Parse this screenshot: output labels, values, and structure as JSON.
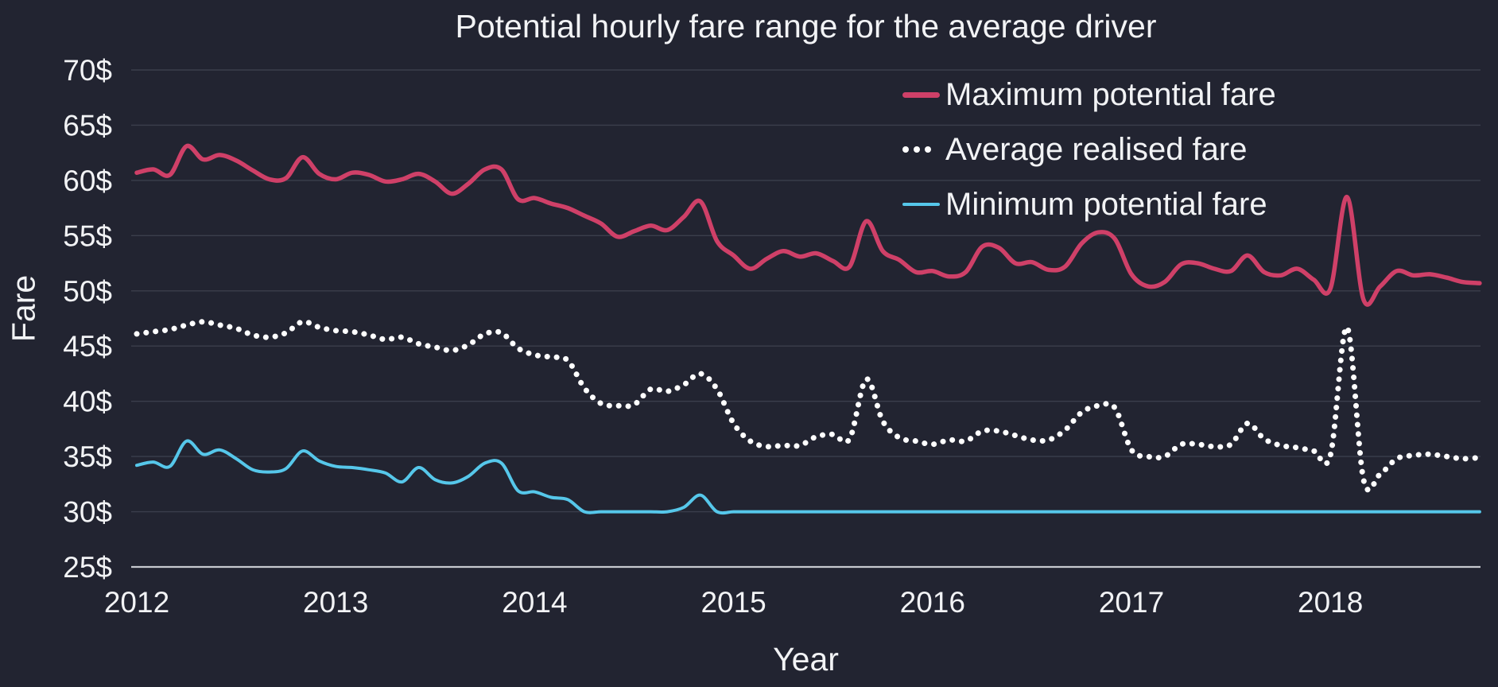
{
  "title": "Potential hourly fare range for the average driver",
  "x_axis": {
    "label": "Year",
    "tick_labels": [
      "2012",
      "2013",
      "2014",
      "2015",
      "2016",
      "2017",
      "2018"
    ]
  },
  "y_axis": {
    "label": "Fare",
    "tick_labels": [
      "70$",
      "65$",
      "60$",
      "55$",
      "50$",
      "45$",
      "40$",
      "35$",
      "30$",
      "25$"
    ],
    "tick_values": [
      70,
      65,
      60,
      55,
      50,
      45,
      40,
      35,
      30,
      25
    ]
  },
  "legend": {
    "items": [
      {
        "label": "Maximum potential fare",
        "style": "solid",
        "color": "#cf4068"
      },
      {
        "label": "Average realised fare",
        "style": "dotted",
        "color": "#ffffff"
      },
      {
        "label": "Minimum potential fare",
        "style": "solid",
        "color": "#56c7ea"
      }
    ]
  },
  "colors": {
    "background": "#222431",
    "grid": "#3b3e4c",
    "axis_line": "#c7c9cf",
    "text": "#f2f3f5",
    "maximum": "#cf4068",
    "average": "#ffffff",
    "minimum": "#56c7ea"
  },
  "chart_data": {
    "type": "line",
    "title": "Potential hourly fare range for the average driver",
    "xlabel": "Year",
    "ylabel": "Fare",
    "ylim": [
      25,
      70
    ],
    "grid": "horizontal",
    "legend_position": "upper-right-inside",
    "x_frequency": "monthly",
    "x": [
      "2012-01",
      "2012-02",
      "2012-03",
      "2012-04",
      "2012-05",
      "2012-06",
      "2012-07",
      "2012-08",
      "2012-09",
      "2012-10",
      "2012-11",
      "2012-12",
      "2013-01",
      "2013-02",
      "2013-03",
      "2013-04",
      "2013-05",
      "2013-06",
      "2013-07",
      "2013-08",
      "2013-09",
      "2013-10",
      "2013-11",
      "2013-12",
      "2014-01",
      "2014-02",
      "2014-03",
      "2014-04",
      "2014-05",
      "2014-06",
      "2014-07",
      "2014-08",
      "2014-09",
      "2014-10",
      "2014-11",
      "2014-12",
      "2015-01",
      "2015-02",
      "2015-03",
      "2015-04",
      "2015-05",
      "2015-06",
      "2015-07",
      "2015-08",
      "2015-09",
      "2015-10",
      "2015-11",
      "2015-12",
      "2016-01",
      "2016-02",
      "2016-03",
      "2016-04",
      "2016-05",
      "2016-06",
      "2016-07",
      "2016-08",
      "2016-09",
      "2016-10",
      "2016-11",
      "2016-12",
      "2017-01",
      "2017-02",
      "2017-03",
      "2017-04",
      "2017-05",
      "2017-06",
      "2017-07",
      "2017-08",
      "2017-09",
      "2017-10",
      "2017-11",
      "2017-12",
      "2018-01",
      "2018-02",
      "2018-03",
      "2018-04",
      "2018-05",
      "2018-06",
      "2018-07",
      "2018-08",
      "2018-09",
      "2018-10"
    ],
    "xtick_month_indices": [
      0,
      12,
      24,
      36,
      48,
      60,
      72
    ],
    "series": [
      {
        "name": "Maximum potential fare",
        "color": "#cf4068",
        "style": "solid",
        "line_width": 5.5,
        "values": [
          60.7,
          61.0,
          60.5,
          63.1,
          61.9,
          62.3,
          61.8,
          60.9,
          60.1,
          60.2,
          62.1,
          60.6,
          60.1,
          60.7,
          60.5,
          59.9,
          60.1,
          60.6,
          59.9,
          58.8,
          59.7,
          61.0,
          61.0,
          58.3,
          58.4,
          57.9,
          57.5,
          56.8,
          56.1,
          54.9,
          55.4,
          55.9,
          55.5,
          56.7,
          58.1,
          54.5,
          53.2,
          52.0,
          52.9,
          53.6,
          53.1,
          53.4,
          52.7,
          52.2,
          56.3,
          53.6,
          52.8,
          51.7,
          51.8,
          51.3,
          51.7,
          54.0,
          53.9,
          52.5,
          52.6,
          51.9,
          52.2,
          54.3,
          55.3,
          54.7,
          51.5,
          50.4,
          50.8,
          52.4,
          52.5,
          52.0,
          51.8,
          53.2,
          51.7,
          51.4,
          52.0,
          51.0,
          50.2,
          58.5,
          49.2,
          50.4,
          51.8,
          51.4,
          51.5,
          51.2,
          50.8,
          50.7
        ]
      },
      {
        "name": "Average realised fare",
        "color": "#ffffff",
        "style": "dotted",
        "line_width": 7,
        "values": [
          46.1,
          46.3,
          46.5,
          46.9,
          47.2,
          46.9,
          46.6,
          46.0,
          45.8,
          46.2,
          47.2,
          46.7,
          46.4,
          46.3,
          46.0,
          45.6,
          45.8,
          45.2,
          44.9,
          44.6,
          45.1,
          46.1,
          46.2,
          44.8,
          44.2,
          44.0,
          43.7,
          41.2,
          39.8,
          39.6,
          39.7,
          41.1,
          40.9,
          41.5,
          42.5,
          41.1,
          38.0,
          36.4,
          35.9,
          36.0,
          36.0,
          36.8,
          37.0,
          36.6,
          42.0,
          38.2,
          36.7,
          36.4,
          36.1,
          36.5,
          36.4,
          37.3,
          37.3,
          36.9,
          36.5,
          36.5,
          37.4,
          39.0,
          39.6,
          39.4,
          35.6,
          35.0,
          35.0,
          36.1,
          36.1,
          35.9,
          36.1,
          38.0,
          36.6,
          36.0,
          35.8,
          35.5,
          35.1,
          46.7,
          32.9,
          33.4,
          34.8,
          35.1,
          35.2,
          35.0,
          34.8,
          34.9
        ]
      },
      {
        "name": "Minimum potential fare",
        "color": "#56c7ea",
        "style": "solid",
        "line_width": 4,
        "values": [
          34.2,
          34.5,
          34.1,
          36.4,
          35.2,
          35.6,
          34.8,
          33.8,
          33.6,
          33.9,
          35.5,
          34.6,
          34.1,
          34.0,
          33.8,
          33.5,
          32.7,
          34.0,
          32.9,
          32.6,
          33.2,
          34.4,
          34.4,
          31.9,
          31.8,
          31.3,
          31.1,
          30.0,
          30.0,
          30.0,
          30.0,
          30.0,
          30.0,
          30.4,
          31.5,
          30.0,
          30.0,
          30.0,
          30.0,
          30.0,
          30.0,
          30.0,
          30.0,
          30.0,
          30.0,
          30.0,
          30.0,
          30.0,
          30.0,
          30.0,
          30.0,
          30.0,
          30.0,
          30.0,
          30.0,
          30.0,
          30.0,
          30.0,
          30.0,
          30.0,
          30.0,
          30.0,
          30.0,
          30.0,
          30.0,
          30.0,
          30.0,
          30.0,
          30.0,
          30.0,
          30.0,
          30.0,
          30.0,
          30.0,
          30.0,
          30.0,
          30.0,
          30.0,
          30.0,
          30.0,
          30.0,
          30.0
        ]
      }
    ]
  }
}
